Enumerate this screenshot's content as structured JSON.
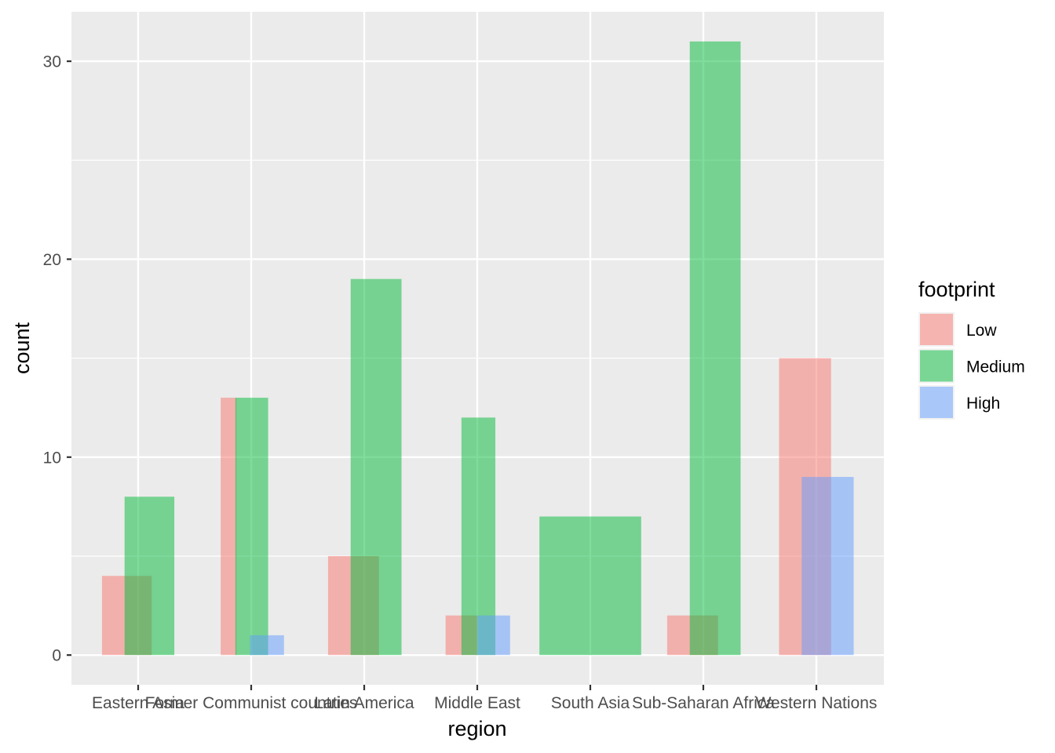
{
  "chart_data": {
    "type": "bar",
    "xlabel": "region",
    "ylabel": "count",
    "ylim": [
      -1.5,
      32.5
    ],
    "y_ticks": [
      0,
      10,
      20,
      30
    ],
    "grid": true,
    "legend": {
      "title": "footprint",
      "placement": "right"
    },
    "categories": [
      "Eastern Asia",
      "Former Communist countries",
      "Latin America",
      "Middle East",
      "South Asia",
      "Sub-Saharan Africa",
      "Western Nations"
    ],
    "series": [
      {
        "name": "Low",
        "color": "#F8766D",
        "opacity": 0.5,
        "values": [
          4,
          13,
          5,
          2,
          0,
          2,
          15
        ]
      },
      {
        "name": "Medium",
        "color": "#00BA38",
        "opacity": 0.5,
        "values": [
          8,
          13,
          19,
          12,
          7,
          31,
          0
        ]
      },
      {
        "name": "High",
        "color": "#619CFF",
        "opacity": 0.5,
        "values": [
          0,
          1,
          0,
          2,
          0,
          0,
          9
        ]
      }
    ],
    "bar_spans": [
      {
        "Low": [
          -0.32,
          0.12
        ],
        "Medium": [
          -0.12,
          0.32
        ],
        "High": null
      },
      {
        "Low": [
          -0.27,
          -0.13
        ],
        "Medium": [
          -0.14,
          0.15
        ],
        "High": [
          -0.01,
          0.29
        ]
      },
      {
        "Low": [
          -0.32,
          0.13
        ],
        "Medium": [
          -0.12,
          0.33
        ],
        "High": null
      },
      {
        "Low": [
          -0.28,
          0.0
        ],
        "Medium": [
          -0.14,
          0.16
        ],
        "High": [
          0.0,
          0.29
        ]
      },
      {
        "Low": null,
        "Medium": [
          -0.45,
          0.45
        ],
        "High": null
      },
      {
        "Low": [
          -0.32,
          0.13
        ],
        "Medium": [
          -0.12,
          0.33
        ],
        "High": null
      },
      {
        "Low": [
          -0.33,
          0.13
        ],
        "Medium": null,
        "High": [
          -0.13,
          0.33
        ]
      }
    ]
  }
}
